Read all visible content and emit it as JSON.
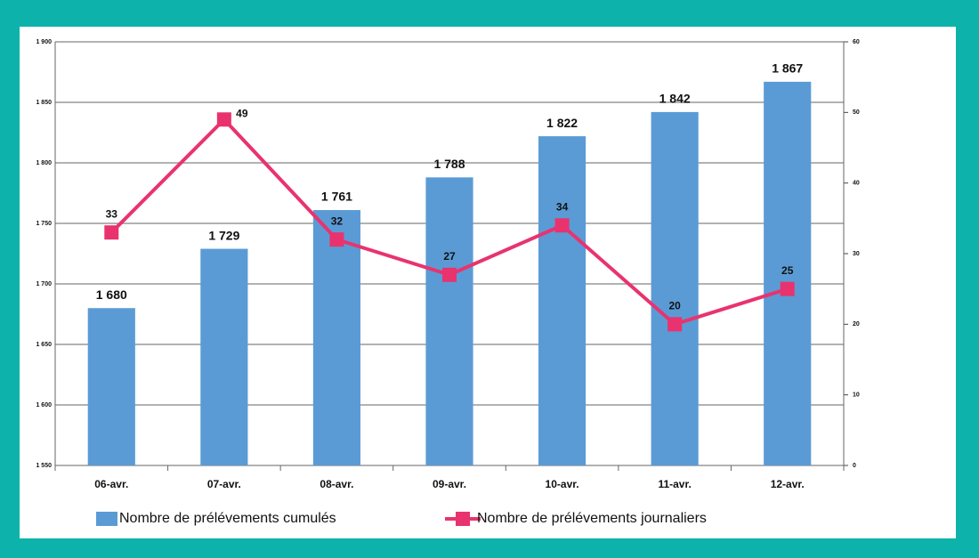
{
  "chart_data": {
    "type": "bar",
    "categories": [
      "06-avr.",
      "07-avr.",
      "08-avr.",
      "09-avr.",
      "10-avr.",
      "11-avr.",
      "12-avr."
    ],
    "series": [
      {
        "name": "Nombre de prélévements cumulés",
        "type": "bar",
        "color": "#5b9bd5",
        "values": [
          1680,
          1729,
          1761,
          1788,
          1822,
          1842,
          1867
        ],
        "value_labels": [
          "1 680",
          "1 729",
          "1 761",
          "1 788",
          "1 822",
          "1 842",
          "1 867"
        ]
      },
      {
        "name": "Nombre de prélévements journaliers",
        "type": "line",
        "axis": "y2",
        "color": "#e8336f",
        "values": [
          33,
          49,
          32,
          27,
          34,
          20,
          25
        ]
      }
    ],
    "ylim": [
      1550,
      1900
    ],
    "yticks": [
      {
        "value": 1550,
        "label": "1 550"
      },
      {
        "value": 1600,
        "label": "1 600"
      },
      {
        "value": 1650,
        "label": "1 650"
      },
      {
        "value": 1700,
        "label": "1 700"
      },
      {
        "value": 1750,
        "label": "1 750"
      },
      {
        "value": 1800,
        "label": "1 800"
      },
      {
        "value": 1850,
        "label": "1 850"
      },
      {
        "value": 1900,
        "label": "1 900"
      }
    ],
    "y2lim": [
      0,
      60
    ],
    "y2ticks": [
      0,
      10,
      20,
      30,
      40,
      50,
      60
    ],
    "grid": true,
    "legend": "bottom"
  }
}
